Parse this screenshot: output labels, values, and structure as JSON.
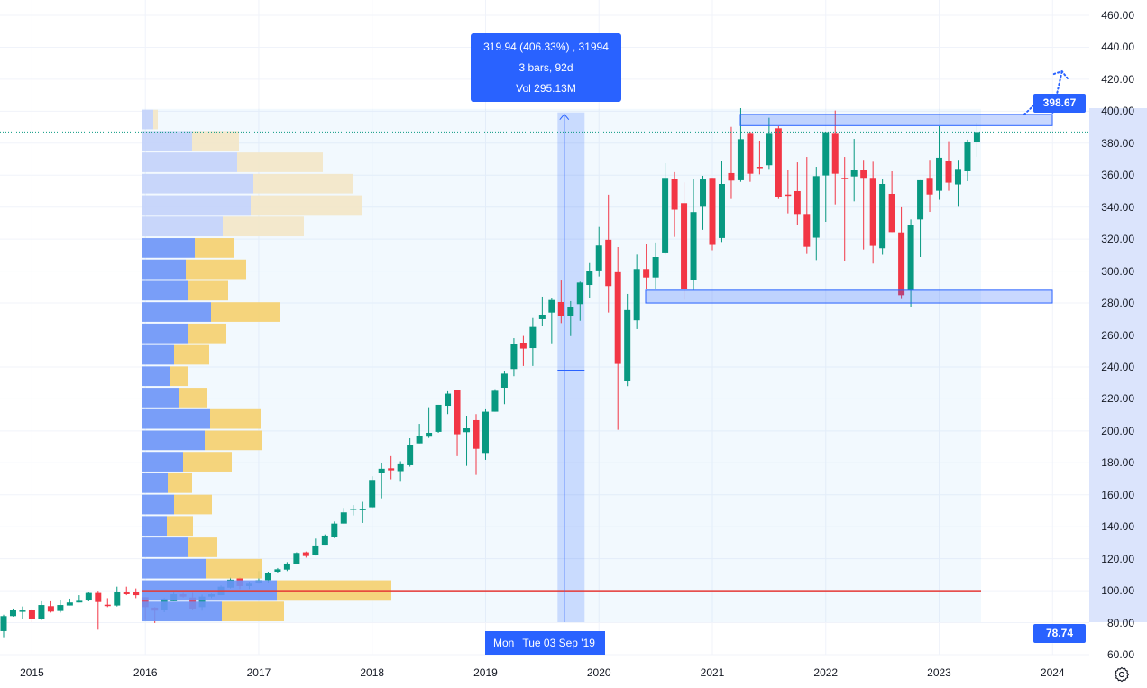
{
  "colors": {
    "up": "#089981",
    "down": "#f23645",
    "accent": "#2962ff",
    "profile_up": "#6b93f7",
    "profile_down": "#f5cf6e",
    "profile_up_light": "#c3d2f9",
    "profile_down_light": "#f3e6c6",
    "level_line": "#e53935"
  },
  "tooltip": {
    "line1": "319.94 (406.33%) , 31994",
    "line2": "3 bars, 92d",
    "line3": "Vol 295.13M"
  },
  "date_crosshair": {
    "day_short": "Mon",
    "date": "Tue 03 Sep '19"
  },
  "price_tags": {
    "range_high": "398.67",
    "range_low": "78.74"
  },
  "settings_icon": "gear-icon",
  "chart_data": {
    "type": "candlestick",
    "interval": "1M",
    "start": "2014-10",
    "ylim": [
      60,
      460
    ],
    "yticks": [
      "460.00",
      "440.00",
      "420.00",
      "400.00",
      "380.00",
      "360.00",
      "340.00",
      "320.00",
      "300.00",
      "280.00",
      "260.00",
      "240.00",
      "220.00",
      "200.00",
      "180.00",
      "160.00",
      "140.00",
      "120.00",
      "100.00",
      "80.00",
      "60.00"
    ],
    "ytick_values": [
      460,
      440,
      420,
      400,
      380,
      360,
      340,
      320,
      300,
      280,
      260,
      240,
      220,
      200,
      180,
      160,
      140,
      120,
      100,
      80,
      60
    ],
    "xticks": [
      {
        "label": "2015",
        "index": 3
      },
      {
        "label": "2016",
        "index": 15
      },
      {
        "label": "2017",
        "index": 27
      },
      {
        "label": "2018",
        "index": 39
      },
      {
        "label": "2019",
        "index": 51
      },
      {
        "label": "2020",
        "index": 63
      },
      {
        "label": "2021",
        "index": 75
      },
      {
        "label": "2022",
        "index": 87
      },
      {
        "label": "2023",
        "index": 99
      },
      {
        "label": "2024",
        "index": 111
      }
    ],
    "last_price": 387.0,
    "ohlc_order": [
      "open",
      "high",
      "low",
      "close"
    ],
    "candles": [
      [
        74.7,
        85,
        70.9,
        84.1
      ],
      [
        84.1,
        88.8,
        83.8,
        88.2
      ],
      [
        87.3,
        90.1,
        82.5,
        87.6
      ],
      [
        87.8,
        88.8,
        80.3,
        82.2
      ],
      [
        82.2,
        93.9,
        81.6,
        91.0
      ],
      [
        90.3,
        93.9,
        86.3,
        86.9
      ],
      [
        87.3,
        94.4,
        86.3,
        91.0
      ],
      [
        90.7,
        95.0,
        90.7,
        92.6
      ],
      [
        92.6,
        97.2,
        92.6,
        94.2
      ],
      [
        94.4,
        99.5,
        93.5,
        98.6
      ],
      [
        98.6,
        100.0,
        75.6,
        92.9
      ],
      [
        91.2,
        95.3,
        89.7,
        91.0
      ],
      [
        90.7,
        102.5,
        90.1,
        99.5
      ],
      [
        99.1,
        102.5,
        97.2,
        97.8
      ],
      [
        99.1,
        101.4,
        95.3,
        97.2
      ],
      [
        95.9,
        95.9,
        81.6,
        89.7
      ],
      [
        89.4,
        89.7,
        79.8,
        87.5
      ],
      [
        87.8,
        95.3,
        86.5,
        95.0
      ],
      [
        93.9,
        99.5,
        93.9,
        97.8
      ],
      [
        97.8,
        98.7,
        95.7,
        96.3
      ],
      [
        95.7,
        98.7,
        87.8,
        88.8
      ],
      [
        89.7,
        97.6,
        87.5,
        96.3
      ],
      [
        96.3,
        98.2,
        95.3,
        97.8
      ],
      [
        97.2,
        103.3,
        97.2,
        102.5
      ],
      [
        101.9,
        108.5,
        101.4,
        106.9
      ],
      [
        107.8,
        108.5,
        101.0,
        102.9
      ],
      [
        102.9,
        105.7,
        101.0,
        104.4
      ],
      [
        104.8,
        112.3,
        104.4,
        106.6
      ],
      [
        106.6,
        111.9,
        105.1,
        111.3
      ],
      [
        111.9,
        114.2,
        110.8,
        113.4
      ],
      [
        113.2,
        117.9,
        112.3,
        117.0
      ],
      [
        116.6,
        124.0,
        116.6,
        123.6
      ],
      [
        124.0,
        124.5,
        120.7,
        121.7
      ],
      [
        122.6,
        132.6,
        122.0,
        128.3
      ],
      [
        128.8,
        135.2,
        128.8,
        134.5
      ],
      [
        133.9,
        143.3,
        132.9,
        142.0
      ],
      [
        142.0,
        151.8,
        142.0,
        149.0
      ],
      [
        151.4,
        153.6,
        147.1,
        151.4
      ],
      [
        151.2,
        155.6,
        142.4,
        151.2
      ],
      [
        152.2,
        171.6,
        151.8,
        169.3
      ],
      [
        173.4,
        179.6,
        157.8,
        176.3
      ],
      [
        176.6,
        184.2,
        169.7,
        175.3
      ],
      [
        174.8,
        181.0,
        168.7,
        179.1
      ],
      [
        178.5,
        195.4,
        177.6,
        190.9
      ],
      [
        192.2,
        204.4,
        192.2,
        196.9
      ],
      [
        196.4,
        214.8,
        195.6,
        198.8
      ],
      [
        199.4,
        216.3,
        198.8,
        216.3
      ],
      [
        215.7,
        224.8,
        210.5,
        223.3
      ],
      [
        225.5,
        225.5,
        184.2,
        197.9
      ],
      [
        199.2,
        209.5,
        178.1,
        201.6
      ],
      [
        206.7,
        210.5,
        172.5,
        188.8
      ],
      [
        186.2,
        213.5,
        181.9,
        212.0
      ],
      [
        212.0,
        226.1,
        212.0,
        225.1
      ],
      [
        227.0,
        237.7,
        216.7,
        235.8
      ],
      [
        238.7,
        258.0,
        234.2,
        254.6
      ],
      [
        255.2,
        259.4,
        240.6,
        251.5
      ],
      [
        251.8,
        270.6,
        240.6,
        265.0
      ],
      [
        269.9,
        284.0,
        265.6,
        272.7
      ],
      [
        274.0,
        283.4,
        254.8,
        281.9
      ],
      [
        280.6,
        294.1,
        267.4,
        271.8
      ],
      [
        271.8,
        281.2,
        259.3,
        277.2
      ],
      [
        279.3,
        293.4,
        268.9,
        292.8
      ],
      [
        291.3,
        305.0,
        283.0,
        300.3
      ],
      [
        300.4,
        327.6,
        296.6,
        316.0
      ],
      [
        319.6,
        347.8,
        274.0,
        290.6
      ],
      [
        299.3,
        315.0,
        200.7,
        241.9
      ],
      [
        231.2,
        285.7,
        228.0,
        275.6
      ],
      [
        269.2,
        310.3,
        263.7,
        301.3
      ],
      [
        301.3,
        316.7,
        289.0,
        296.0
      ],
      [
        296.0,
        317.9,
        289.0,
        308.8
      ],
      [
        311.1,
        367.5,
        310.3,
        358.3
      ],
      [
        357.7,
        361.9,
        321.4,
        338.4
      ],
      [
        342.5,
        355.5,
        282.1,
        288.5
      ],
      [
        294.4,
        357.3,
        288.1,
        336.9
      ],
      [
        340.2,
        359.6,
        325.8,
        357.3
      ],
      [
        358.3,
        358.3,
        313.0,
        316.4
      ],
      [
        320.7,
        369.0,
        318.2,
        354.5
      ],
      [
        361.3,
        390.2,
        345.1,
        356.6
      ],
      [
        356.8,
        401.9,
        355.8,
        382.5
      ],
      [
        385.9,
        387.2,
        355.8,
        360.9
      ],
      [
        365.2,
        381.6,
        360.5,
        364.7
      ],
      [
        366.2,
        395.9,
        363.9,
        385.9
      ],
      [
        389.3,
        390.6,
        345.1,
        346.1
      ],
      [
        347.9,
        363.0,
        336.1,
        347.6
      ],
      [
        350.0,
        368.0,
        329.1,
        335.7
      ],
      [
        335.7,
        371.4,
        310.7,
        315.2
      ],
      [
        320.9,
        365.2,
        306.9,
        359.4
      ],
      [
        359.8,
        386.9,
        330.8,
        386.9
      ],
      [
        385.9,
        400.4,
        341.7,
        360.9
      ],
      [
        358.3,
        371.4,
        306.0,
        357.9
      ],
      [
        359.2,
        382.7,
        343.6,
        363.4
      ],
      [
        363.4,
        369.6,
        313.5,
        358.3
      ],
      [
        358.3,
        368.4,
        304.7,
        315.8
      ],
      [
        314.3,
        357.3,
        310.2,
        354.5
      ],
      [
        348.3,
        362.4,
        324.4,
        324.4
      ],
      [
        324.2,
        339.9,
        282.5,
        284.9
      ],
      [
        288.1,
        332.3,
        277.4,
        328.6
      ],
      [
        332.3,
        356.8,
        308.8,
        356.8
      ],
      [
        358.3,
        369.6,
        337.0,
        347.9
      ],
      [
        350.2,
        390.6,
        344.6,
        370.9
      ],
      [
        369.0,
        381.2,
        350.2,
        355.3
      ],
      [
        354.2,
        369.6,
        340.2,
        363.9
      ],
      [
        362.4,
        382.2,
        356.2,
        380.5
      ],
      [
        380.5,
        392.9,
        371.4,
        387.0
      ]
    ],
    "volume_profile": {
      "range": [
        78.74,
        398.67
      ],
      "rows_bottom_to_top": [
        {
          "up": 89,
          "down": 69,
          "in_value_area": true
        },
        {
          "up": 150,
          "down": 127,
          "in_value_area": true
        },
        {
          "up": 72,
          "down": 62,
          "in_value_area": true
        },
        {
          "up": 51,
          "down": 33,
          "in_value_area": true
        },
        {
          "up": 28,
          "down": 29,
          "in_value_area": true
        },
        {
          "up": 36,
          "down": 42,
          "in_value_area": true
        },
        {
          "up": 29,
          "down": 27,
          "in_value_area": true
        },
        {
          "up": 46,
          "down": 54,
          "in_value_area": true
        },
        {
          "up": 70,
          "down": 64,
          "in_value_area": true
        },
        {
          "up": 76,
          "down": 56,
          "in_value_area": true
        },
        {
          "up": 41,
          "down": 32,
          "in_value_area": true
        },
        {
          "up": 32,
          "down": 20,
          "in_value_area": true
        },
        {
          "up": 36,
          "down": 39,
          "in_value_area": true
        },
        {
          "up": 51,
          "down": 43,
          "in_value_area": true
        },
        {
          "up": 77,
          "down": 77,
          "in_value_area": true
        },
        {
          "up": 52,
          "down": 44,
          "in_value_area": true
        },
        {
          "up": 49,
          "down": 67,
          "in_value_area": true
        },
        {
          "up": 59,
          "down": 44,
          "in_value_area": true
        },
        {
          "up": 90,
          "down": 90,
          "in_value_area": false
        },
        {
          "up": 121,
          "down": 124,
          "in_value_area": false
        },
        {
          "up": 124,
          "down": 111,
          "in_value_area": false
        },
        {
          "up": 106,
          "down": 95,
          "in_value_area": false
        },
        {
          "up": 56,
          "down": 52,
          "in_value_area": false
        },
        {
          "up": 13,
          "down": 5,
          "in_value_area": false
        }
      ],
      "poc_price": 100
    },
    "zones": [
      {
        "name": "resistance",
        "from": 391,
        "to": 398
      },
      {
        "name": "support",
        "from": 280,
        "to": 288
      }
    ],
    "date_range": {
      "start_index": 59,
      "end_index": 61,
      "from_price": 238,
      "to_price": 398.67
    },
    "projection_path": [
      [
        108,
        398
      ],
      [
        110,
        409
      ],
      [
        111,
        399
      ],
      [
        112,
        425
      ]
    ]
  }
}
